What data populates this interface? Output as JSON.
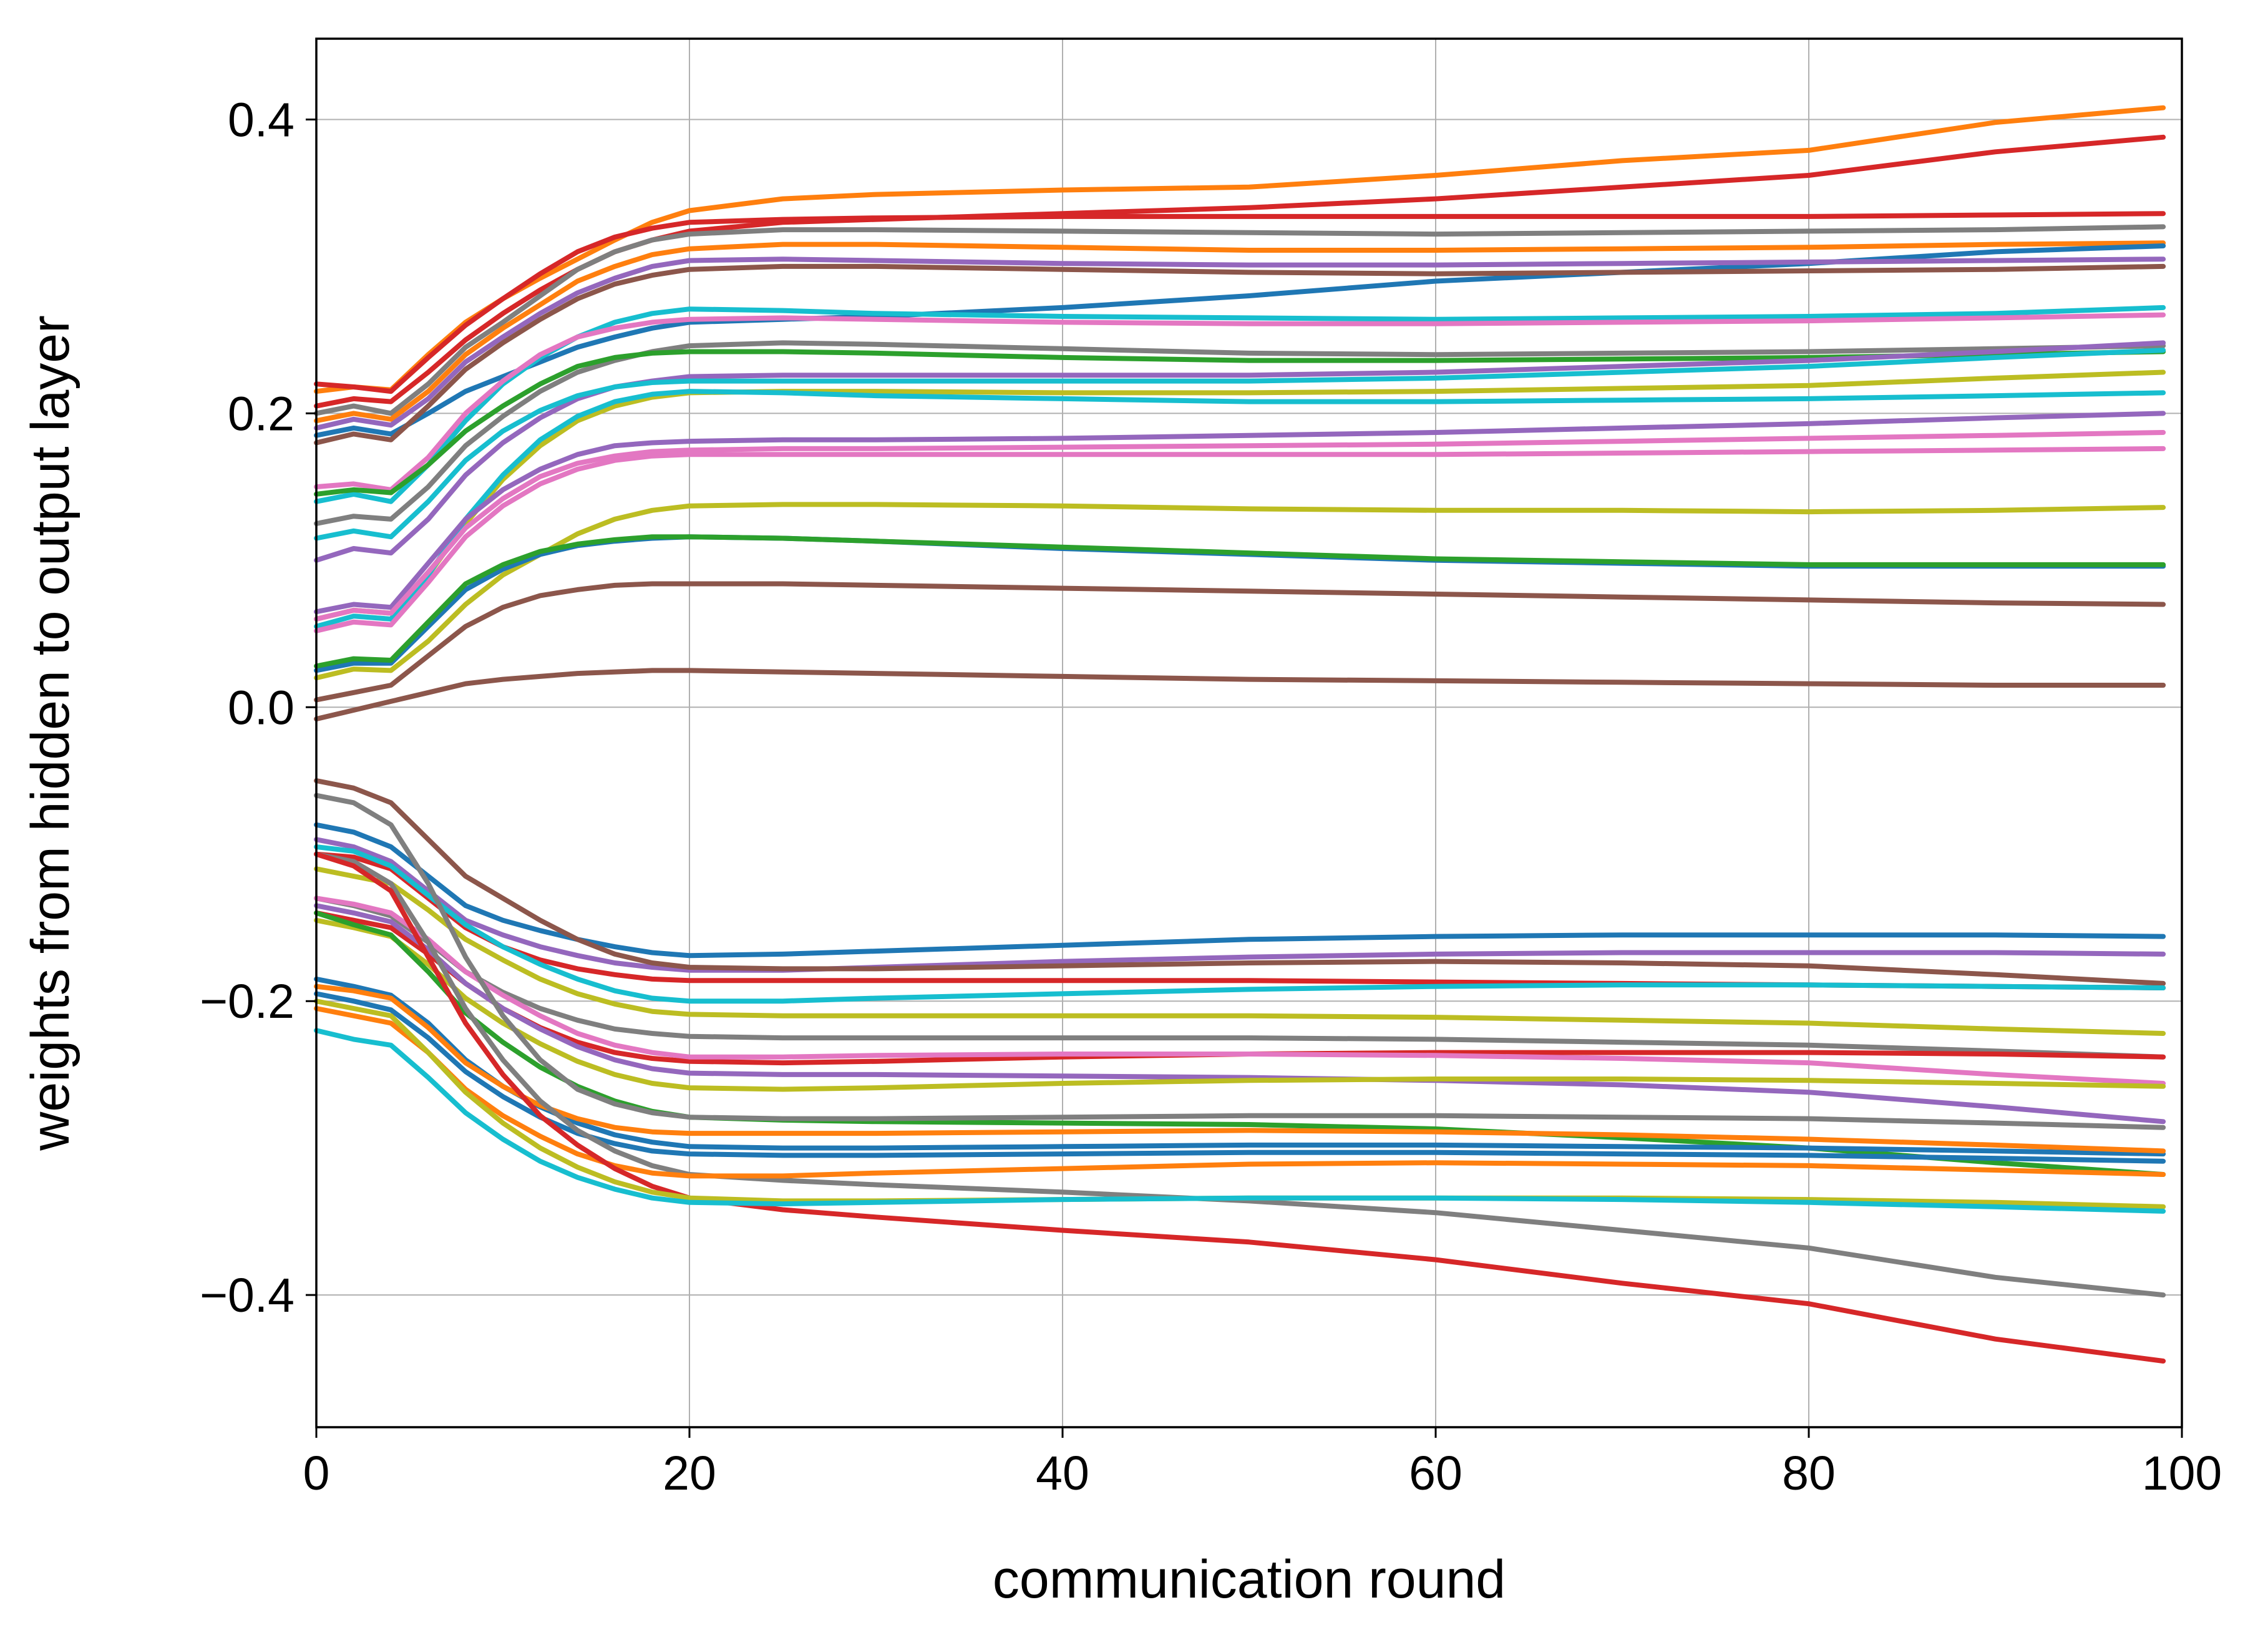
{
  "chart_data": {
    "type": "line",
    "title": "",
    "xlabel": "communication round",
    "ylabel": "weights from hidden to output layer",
    "xlim": [
      0,
      100
    ],
    "ylim": [
      -0.49,
      0.455
    ],
    "xticks": [
      0,
      20,
      40,
      60,
      80,
      100
    ],
    "xtick_labels": [
      "0",
      "20",
      "40",
      "60",
      "80",
      "100"
    ],
    "yticks": [
      -0.4,
      -0.2,
      0.0,
      0.2,
      0.4
    ],
    "ytick_labels": [
      "−0.4",
      "−0.2",
      "0.0",
      "0.2",
      "0.4"
    ],
    "grid": true,
    "legend": "none",
    "x_points": [
      0,
      2,
      4,
      6,
      8,
      10,
      12,
      14,
      16,
      18,
      20,
      25,
      30,
      40,
      50,
      60,
      70,
      80,
      90,
      99
    ],
    "series": [
      {
        "color": "#ff7f0e",
        "values": [
          0.215,
          0.218,
          0.216,
          0.24,
          0.262,
          0.278,
          0.292,
          0.305,
          0.318,
          0.33,
          0.338,
          0.346,
          0.349,
          0.352,
          0.354,
          0.362,
          0.372,
          0.379,
          0.398,
          0.408
        ]
      },
      {
        "color": "#d62728",
        "values": [
          0.205,
          0.21,
          0.208,
          0.228,
          0.25,
          0.268,
          0.284,
          0.298,
          0.31,
          0.318,
          0.324,
          0.33,
          0.332,
          0.336,
          0.34,
          0.346,
          0.354,
          0.362,
          0.378,
          0.388
        ]
      },
      {
        "color": "#d62728",
        "values": [
          0.22,
          0.218,
          0.215,
          0.238,
          0.26,
          0.278,
          0.295,
          0.31,
          0.32,
          0.326,
          0.33,
          0.332,
          0.333,
          0.334,
          0.334,
          0.334,
          0.334,
          0.334,
          0.335,
          0.336
        ]
      },
      {
        "color": "#7f7f7f",
        "values": [
          0.2,
          0.205,
          0.2,
          0.22,
          0.245,
          0.262,
          0.28,
          0.298,
          0.31,
          0.318,
          0.322,
          0.325,
          0.325,
          0.324,
          0.323,
          0.322,
          0.323,
          0.324,
          0.325,
          0.327
        ]
      },
      {
        "color": "#ff7f0e",
        "values": [
          0.195,
          0.2,
          0.196,
          0.215,
          0.24,
          0.258,
          0.274,
          0.29,
          0.3,
          0.308,
          0.312,
          0.315,
          0.315,
          0.313,
          0.311,
          0.311,
          0.312,
          0.313,
          0.315,
          0.316
        ]
      },
      {
        "color": "#1f77b4",
        "values": [
          0.185,
          0.19,
          0.186,
          0.2,
          0.215,
          0.225,
          0.235,
          0.245,
          0.252,
          0.258,
          0.262,
          0.264,
          0.266,
          0.272,
          0.28,
          0.29,
          0.296,
          0.302,
          0.31,
          0.314
        ]
      },
      {
        "color": "#9467bd",
        "values": [
          0.19,
          0.196,
          0.192,
          0.21,
          0.235,
          0.252,
          0.268,
          0.282,
          0.292,
          0.3,
          0.304,
          0.305,
          0.304,
          0.302,
          0.301,
          0.301,
          0.302,
          0.303,
          0.304,
          0.305
        ]
      },
      {
        "color": "#8c564b",
        "values": [
          0.18,
          0.186,
          0.182,
          0.205,
          0.23,
          0.248,
          0.264,
          0.278,
          0.288,
          0.294,
          0.298,
          0.3,
          0.3,
          0.298,
          0.296,
          0.295,
          0.296,
          0.297,
          0.298,
          0.3
        ]
      },
      {
        "color": "#17becf",
        "values": [
          0.14,
          0.145,
          0.14,
          0.165,
          0.195,
          0.22,
          0.238,
          0.252,
          0.262,
          0.268,
          0.271,
          0.27,
          0.268,
          0.266,
          0.265,
          0.264,
          0.265,
          0.266,
          0.268,
          0.272
        ]
      },
      {
        "color": "#e377c2",
        "values": [
          0.15,
          0.152,
          0.148,
          0.17,
          0.2,
          0.222,
          0.24,
          0.252,
          0.258,
          0.262,
          0.264,
          0.265,
          0.264,
          0.262,
          0.261,
          0.261,
          0.262,
          0.263,
          0.265,
          0.267
        ]
      },
      {
        "color": "#7f7f7f",
        "values": [
          0.125,
          0.13,
          0.128,
          0.15,
          0.178,
          0.198,
          0.215,
          0.228,
          0.236,
          0.242,
          0.246,
          0.248,
          0.247,
          0.244,
          0.241,
          0.24,
          0.241,
          0.242,
          0.244,
          0.246
        ]
      },
      {
        "color": "#2ca02c",
        "values": [
          0.145,
          0.148,
          0.146,
          0.165,
          0.188,
          0.205,
          0.22,
          0.232,
          0.238,
          0.241,
          0.242,
          0.242,
          0.241,
          0.238,
          0.236,
          0.236,
          0.237,
          0.238,
          0.24,
          0.242
        ]
      },
      {
        "color": "#9467bd",
        "values": [
          0.1,
          0.108,
          0.105,
          0.128,
          0.158,
          0.18,
          0.197,
          0.21,
          0.218,
          0.222,
          0.225,
          0.226,
          0.226,
          0.226,
          0.226,
          0.228,
          0.232,
          0.236,
          0.242,
          0.248
        ]
      },
      {
        "color": "#17becf",
        "values": [
          0.115,
          0.12,
          0.116,
          0.14,
          0.168,
          0.188,
          0.202,
          0.212,
          0.218,
          0.221,
          0.222,
          0.222,
          0.222,
          0.222,
          0.222,
          0.224,
          0.228,
          0.232,
          0.238,
          0.243
        ]
      },
      {
        "color": "#bcbd22",
        "values": [
          0.06,
          0.066,
          0.064,
          0.09,
          0.125,
          0.155,
          0.178,
          0.195,
          0.205,
          0.211,
          0.214,
          0.215,
          0.215,
          0.214,
          0.214,
          0.215,
          0.217,
          0.219,
          0.224,
          0.228
        ]
      },
      {
        "color": "#17becf",
        "values": [
          0.055,
          0.062,
          0.06,
          0.09,
          0.128,
          0.158,
          0.182,
          0.198,
          0.208,
          0.213,
          0.215,
          0.214,
          0.212,
          0.21,
          0.208,
          0.208,
          0.209,
          0.21,
          0.212,
          0.214
        ]
      },
      {
        "color": "#9467bd",
        "values": [
          0.065,
          0.07,
          0.068,
          0.098,
          0.128,
          0.148,
          0.162,
          0.172,
          0.178,
          0.18,
          0.181,
          0.182,
          0.182,
          0.183,
          0.185,
          0.187,
          0.19,
          0.193,
          0.197,
          0.2
        ]
      },
      {
        "color": "#e377c2",
        "values": [
          0.06,
          0.066,
          0.064,
          0.092,
          0.122,
          0.142,
          0.157,
          0.166,
          0.171,
          0.174,
          0.175,
          0.176,
          0.176,
          0.177,
          0.178,
          0.179,
          0.181,
          0.183,
          0.185,
          0.187
        ]
      },
      {
        "color": "#e377c2",
        "values": [
          0.052,
          0.058,
          0.056,
          0.085,
          0.116,
          0.137,
          0.152,
          0.162,
          0.168,
          0.171,
          0.172,
          0.172,
          0.172,
          0.172,
          0.172,
          0.172,
          0.173,
          0.174,
          0.175,
          0.176
        ]
      },
      {
        "color": "#bcbd22",
        "values": [
          0.02,
          0.026,
          0.025,
          0.045,
          0.07,
          0.09,
          0.104,
          0.118,
          0.128,
          0.134,
          0.137,
          0.138,
          0.138,
          0.137,
          0.135,
          0.134,
          0.134,
          0.133,
          0.134,
          0.136
        ]
      },
      {
        "color": "#1f77b4",
        "values": [
          0.025,
          0.03,
          0.03,
          0.055,
          0.08,
          0.094,
          0.104,
          0.11,
          0.113,
          0.115,
          0.116,
          0.115,
          0.113,
          0.108,
          0.104,
          0.1,
          0.098,
          0.096,
          0.096,
          0.096
        ]
      },
      {
        "color": "#2ca02c",
        "values": [
          0.028,
          0.033,
          0.032,
          0.058,
          0.084,
          0.097,
          0.106,
          0.111,
          0.114,
          0.116,
          0.116,
          0.115,
          0.113,
          0.109,
          0.105,
          0.101,
          0.099,
          0.097,
          0.097,
          0.097
        ]
      },
      {
        "color": "#8c564b",
        "values": [
          0.005,
          0.01,
          0.015,
          0.035,
          0.055,
          0.068,
          0.076,
          0.08,
          0.083,
          0.084,
          0.084,
          0.084,
          0.083,
          0.081,
          0.079,
          0.077,
          0.075,
          0.073,
          0.071,
          0.07
        ]
      },
      {
        "color": "#8c564b",
        "values": [
          -0.008,
          -0.002,
          0.004,
          0.01,
          0.016,
          0.019,
          0.021,
          0.023,
          0.024,
          0.025,
          0.025,
          0.024,
          0.023,
          0.021,
          0.019,
          0.018,
          0.017,
          0.016,
          0.015,
          0.015
        ]
      },
      {
        "color": "#1f77b4",
        "values": [
          -0.08,
          -0.085,
          -0.095,
          -0.115,
          -0.135,
          -0.145,
          -0.152,
          -0.158,
          -0.163,
          -0.167,
          -0.169,
          -0.168,
          -0.166,
          -0.162,
          -0.158,
          -0.156,
          -0.155,
          -0.155,
          -0.155,
          -0.156
        ]
      },
      {
        "color": "#9467bd",
        "values": [
          -0.09,
          -0.095,
          -0.105,
          -0.125,
          -0.145,
          -0.155,
          -0.163,
          -0.169,
          -0.174,
          -0.177,
          -0.179,
          -0.179,
          -0.177,
          -0.173,
          -0.17,
          -0.168,
          -0.167,
          -0.167,
          -0.167,
          -0.168
        ]
      },
      {
        "color": "#8c564b",
        "values": [
          -0.05,
          -0.055,
          -0.065,
          -0.09,
          -0.115,
          -0.13,
          -0.145,
          -0.158,
          -0.168,
          -0.174,
          -0.177,
          -0.178,
          -0.178,
          -0.176,
          -0.174,
          -0.173,
          -0.174,
          -0.176,
          -0.182,
          -0.188
        ]
      },
      {
        "color": "#d62728",
        "values": [
          -0.1,
          -0.102,
          -0.11,
          -0.13,
          -0.15,
          -0.163,
          -0.172,
          -0.178,
          -0.182,
          -0.185,
          -0.186,
          -0.186,
          -0.186,
          -0.186,
          -0.186,
          -0.187,
          -0.188,
          -0.189,
          -0.19,
          -0.191
        ]
      },
      {
        "color": "#17becf",
        "values": [
          -0.095,
          -0.098,
          -0.108,
          -0.128,
          -0.148,
          -0.163,
          -0.175,
          -0.185,
          -0.193,
          -0.198,
          -0.2,
          -0.2,
          -0.198,
          -0.195,
          -0.192,
          -0.19,
          -0.189,
          -0.189,
          -0.19,
          -0.191
        ]
      },
      {
        "color": "#bcbd22",
        "values": [
          -0.11,
          -0.115,
          -0.12,
          -0.138,
          -0.158,
          -0.172,
          -0.185,
          -0.195,
          -0.202,
          -0.207,
          -0.209,
          -0.21,
          -0.21,
          -0.21,
          -0.21,
          -0.211,
          -0.213,
          -0.215,
          -0.219,
          -0.222
        ]
      },
      {
        "color": "#7f7f7f",
        "values": [
          -0.13,
          -0.135,
          -0.142,
          -0.16,
          -0.18,
          -0.194,
          -0.205,
          -0.213,
          -0.219,
          -0.222,
          -0.224,
          -0.225,
          -0.225,
          -0.225,
          -0.225,
          -0.226,
          -0.228,
          -0.23,
          -0.234,
          -0.238
        ]
      },
      {
        "color": "#d62728",
        "values": [
          -0.14,
          -0.145,
          -0.15,
          -0.168,
          -0.188,
          -0.205,
          -0.218,
          -0.228,
          -0.235,
          -0.239,
          -0.241,
          -0.242,
          -0.241,
          -0.238,
          -0.236,
          -0.235,
          -0.235,
          -0.235,
          -0.236,
          -0.238
        ]
      },
      {
        "color": "#e377c2",
        "values": [
          -0.13,
          -0.134,
          -0.14,
          -0.158,
          -0.18,
          -0.196,
          -0.21,
          -0.222,
          -0.23,
          -0.235,
          -0.238,
          -0.238,
          -0.237,
          -0.236,
          -0.236,
          -0.237,
          -0.239,
          -0.242,
          -0.25,
          -0.256
        ]
      },
      {
        "color": "#9467bd",
        "values": [
          -0.135,
          -0.14,
          -0.146,
          -0.165,
          -0.188,
          -0.205,
          -0.219,
          -0.231,
          -0.24,
          -0.246,
          -0.249,
          -0.25,
          -0.25,
          -0.251,
          -0.252,
          -0.254,
          -0.257,
          -0.262,
          -0.272,
          -0.282
        ]
      },
      {
        "color": "#bcbd22",
        "values": [
          -0.145,
          -0.15,
          -0.156,
          -0.175,
          -0.198,
          -0.215,
          -0.229,
          -0.241,
          -0.25,
          -0.256,
          -0.259,
          -0.26,
          -0.259,
          -0.256,
          -0.254,
          -0.253,
          -0.253,
          -0.254,
          -0.256,
          -0.258
        ]
      },
      {
        "color": "#2ca02c",
        "values": [
          -0.14,
          -0.148,
          -0.155,
          -0.18,
          -0.208,
          -0.228,
          -0.245,
          -0.258,
          -0.268,
          -0.275,
          -0.279,
          -0.281,
          -0.282,
          -0.283,
          -0.284,
          -0.287,
          -0.293,
          -0.3,
          -0.31,
          -0.318
        ]
      },
      {
        "color": "#7f7f7f",
        "values": [
          -0.06,
          -0.065,
          -0.08,
          -0.12,
          -0.17,
          -0.21,
          -0.24,
          -0.26,
          -0.27,
          -0.276,
          -0.279,
          -0.28,
          -0.28,
          -0.279,
          -0.278,
          -0.278,
          -0.279,
          -0.28,
          -0.283,
          -0.286
        ]
      },
      {
        "color": "#1f77b4",
        "values": [
          -0.185,
          -0.19,
          -0.196,
          -0.215,
          -0.24,
          -0.258,
          -0.272,
          -0.283,
          -0.291,
          -0.296,
          -0.299,
          -0.3,
          -0.3,
          -0.299,
          -0.298,
          -0.298,
          -0.299,
          -0.3,
          -0.302,
          -0.304
        ]
      },
      {
        "color": "#1f77b4",
        "values": [
          -0.195,
          -0.2,
          -0.206,
          -0.225,
          -0.248,
          -0.265,
          -0.279,
          -0.29,
          -0.297,
          -0.302,
          -0.304,
          -0.305,
          -0.305,
          -0.304,
          -0.303,
          -0.303,
          -0.304,
          -0.305,
          -0.307,
          -0.309
        ]
      },
      {
        "color": "#ff7f0e",
        "values": [
          -0.19,
          -0.193,
          -0.198,
          -0.218,
          -0.242,
          -0.258,
          -0.271,
          -0.28,
          -0.286,
          -0.289,
          -0.29,
          -0.29,
          -0.29,
          -0.289,
          -0.288,
          -0.289,
          -0.291,
          -0.294,
          -0.298,
          -0.302
        ]
      },
      {
        "color": "#7f7f7f",
        "values": [
          -0.1,
          -0.105,
          -0.12,
          -0.16,
          -0.205,
          -0.24,
          -0.268,
          -0.288,
          -0.302,
          -0.312,
          -0.318,
          -0.322,
          -0.325,
          -0.33,
          -0.336,
          -0.344,
          -0.356,
          -0.368,
          -0.388,
          -0.4
        ]
      },
      {
        "color": "#ff7f0e",
        "values": [
          -0.205,
          -0.21,
          -0.215,
          -0.235,
          -0.26,
          -0.278,
          -0.292,
          -0.304,
          -0.312,
          -0.317,
          -0.319,
          -0.319,
          -0.317,
          -0.314,
          -0.311,
          -0.31,
          -0.311,
          -0.312,
          -0.315,
          -0.318
        ]
      },
      {
        "color": "#d62728",
        "values": [
          -0.1,
          -0.108,
          -0.125,
          -0.17,
          -0.215,
          -0.25,
          -0.278,
          -0.298,
          -0.314,
          -0.326,
          -0.334,
          -0.342,
          -0.347,
          -0.356,
          -0.364,
          -0.376,
          -0.392,
          -0.406,
          -0.43,
          -0.445
        ]
      },
      {
        "color": "#bcbd22",
        "values": [
          -0.2,
          -0.205,
          -0.21,
          -0.235,
          -0.262,
          -0.283,
          -0.3,
          -0.313,
          -0.323,
          -0.33,
          -0.334,
          -0.336,
          -0.336,
          -0.335,
          -0.334,
          -0.334,
          -0.334,
          -0.335,
          -0.337,
          -0.34
        ]
      },
      {
        "color": "#17becf",
        "values": [
          -0.22,
          -0.226,
          -0.23,
          -0.252,
          -0.276,
          -0.294,
          -0.309,
          -0.32,
          -0.328,
          -0.334,
          -0.337,
          -0.338,
          -0.337,
          -0.335,
          -0.334,
          -0.334,
          -0.335,
          -0.337,
          -0.34,
          -0.343
        ]
      }
    ]
  }
}
